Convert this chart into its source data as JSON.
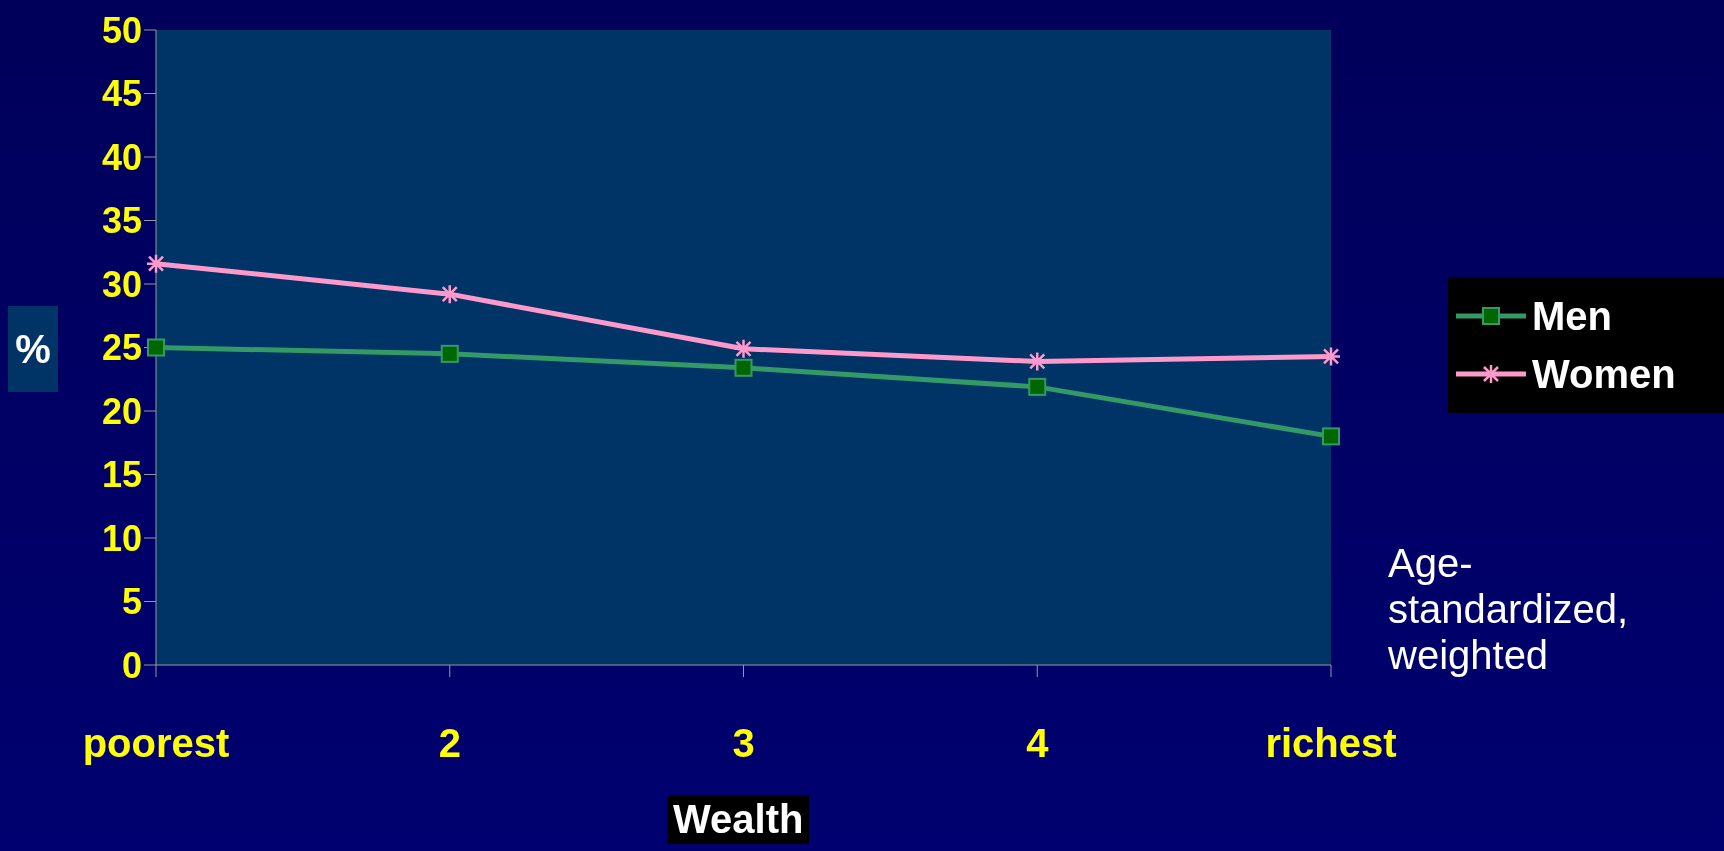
{
  "chart_data": {
    "type": "line",
    "xlabel": "Wealth",
    "ylabel": "%",
    "categories": [
      "poorest",
      "2",
      "3",
      "4",
      "richest"
    ],
    "series": [
      {
        "name": "Men",
        "color": "#339966",
        "marker": "square",
        "values": [
          25.0,
          24.5,
          23.4,
          21.9,
          18.0
        ]
      },
      {
        "name": "Women",
        "color": "#ff99cc",
        "marker": "cross",
        "values": [
          31.6,
          29.2,
          24.9,
          23.9,
          24.3
        ]
      }
    ],
    "ylim": [
      0,
      50
    ],
    "yticks": [
      0,
      5,
      10,
      15,
      20,
      25,
      30,
      35,
      40,
      45,
      50
    ],
    "grid": false,
    "legend": "right",
    "annotations": [
      "Age-standardized, weighted"
    ]
  }
}
